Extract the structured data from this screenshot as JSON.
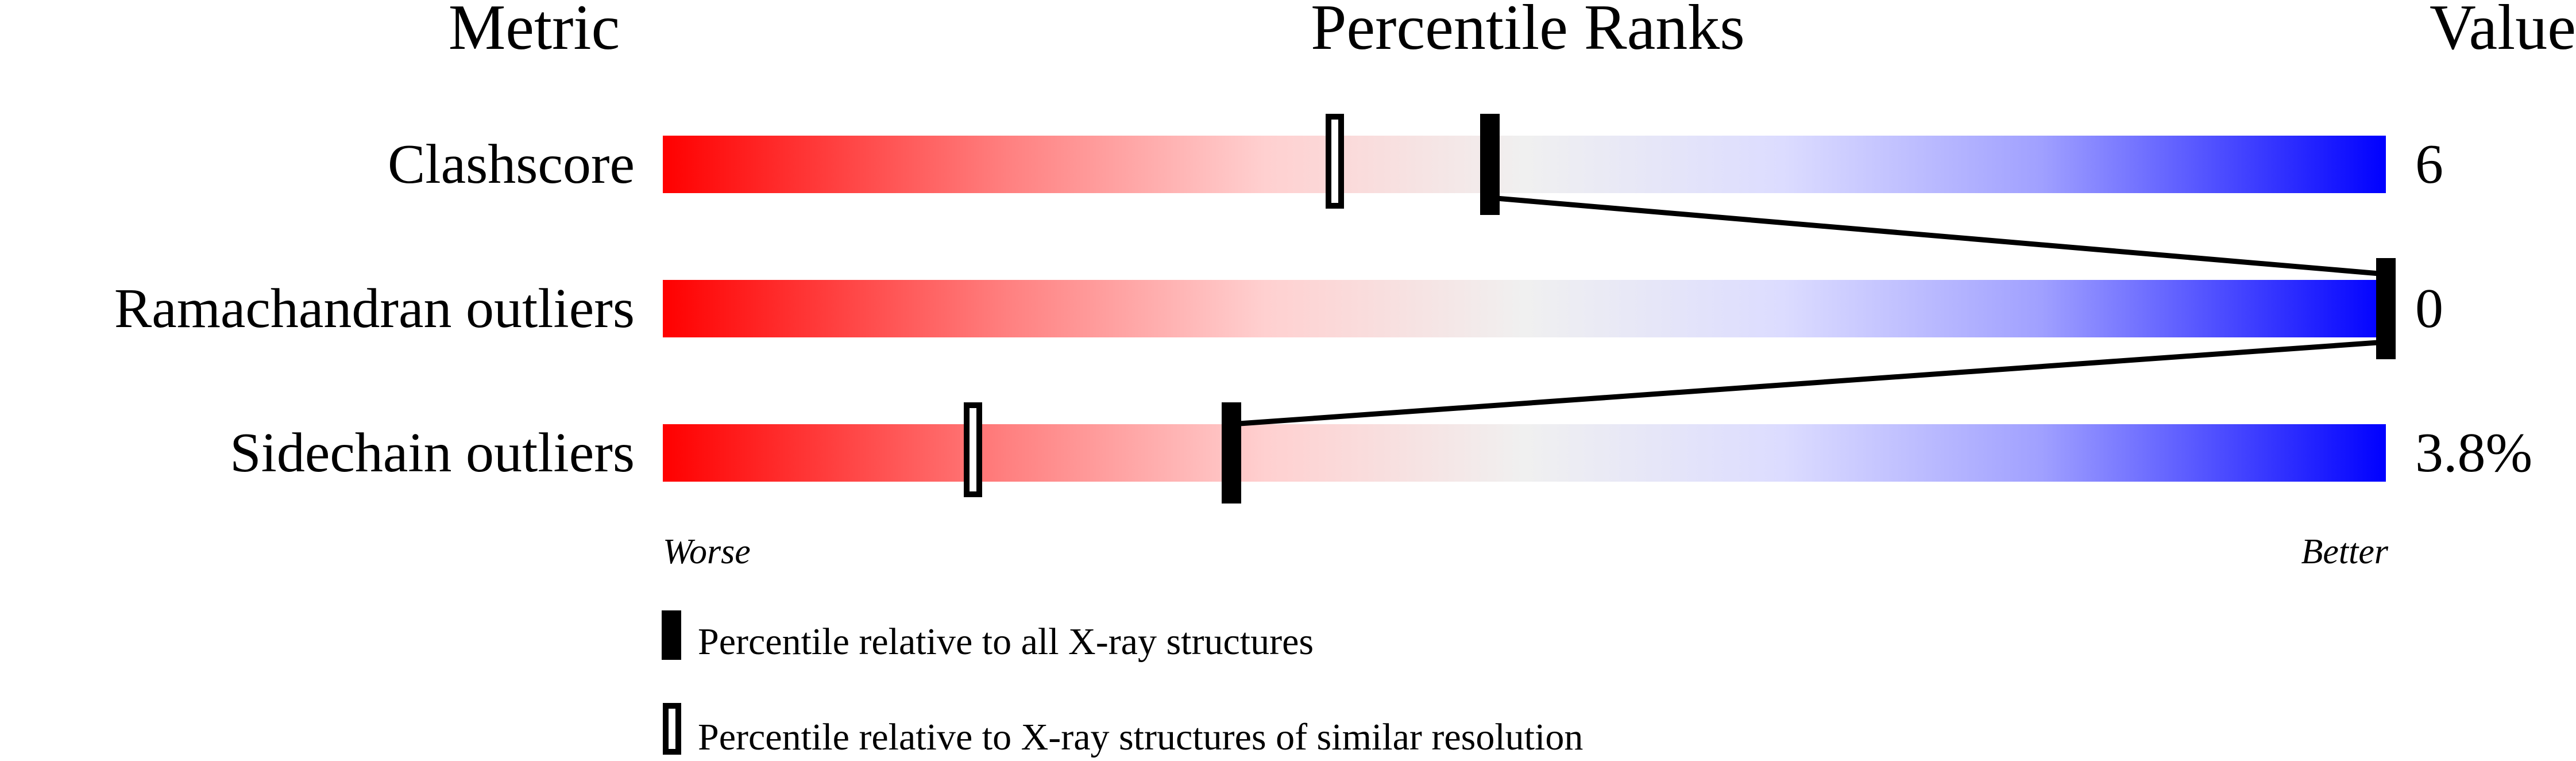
{
  "chart_data": {
    "type": "bar",
    "headers": {
      "metric": "Metric",
      "percentile": "Percentile Ranks",
      "value": "Value"
    },
    "xlim": [
      0,
      100
    ],
    "axis_left": "Worse",
    "axis_right": "Better",
    "gradient_colors": [
      "#ff0000",
      "#f0f0f0",
      "#0000ff"
    ],
    "rows": [
      {
        "metric": "Clashscore",
        "value": "6",
        "percentile_all": 48,
        "percentile_similar": 39
      },
      {
        "metric": "Ramachandran outliers",
        "value": "0",
        "percentile_all": 100,
        "percentile_similar": 100
      },
      {
        "metric": "Sidechain outliers",
        "value": "3.8%",
        "percentile_all": 33,
        "percentile_similar": 18
      }
    ],
    "legend": [
      {
        "marker": "filled",
        "label": "Percentile relative to all X-ray structures"
      },
      {
        "marker": "hollow",
        "label": "Percentile relative to X-ray structures of similar resolution"
      }
    ]
  }
}
